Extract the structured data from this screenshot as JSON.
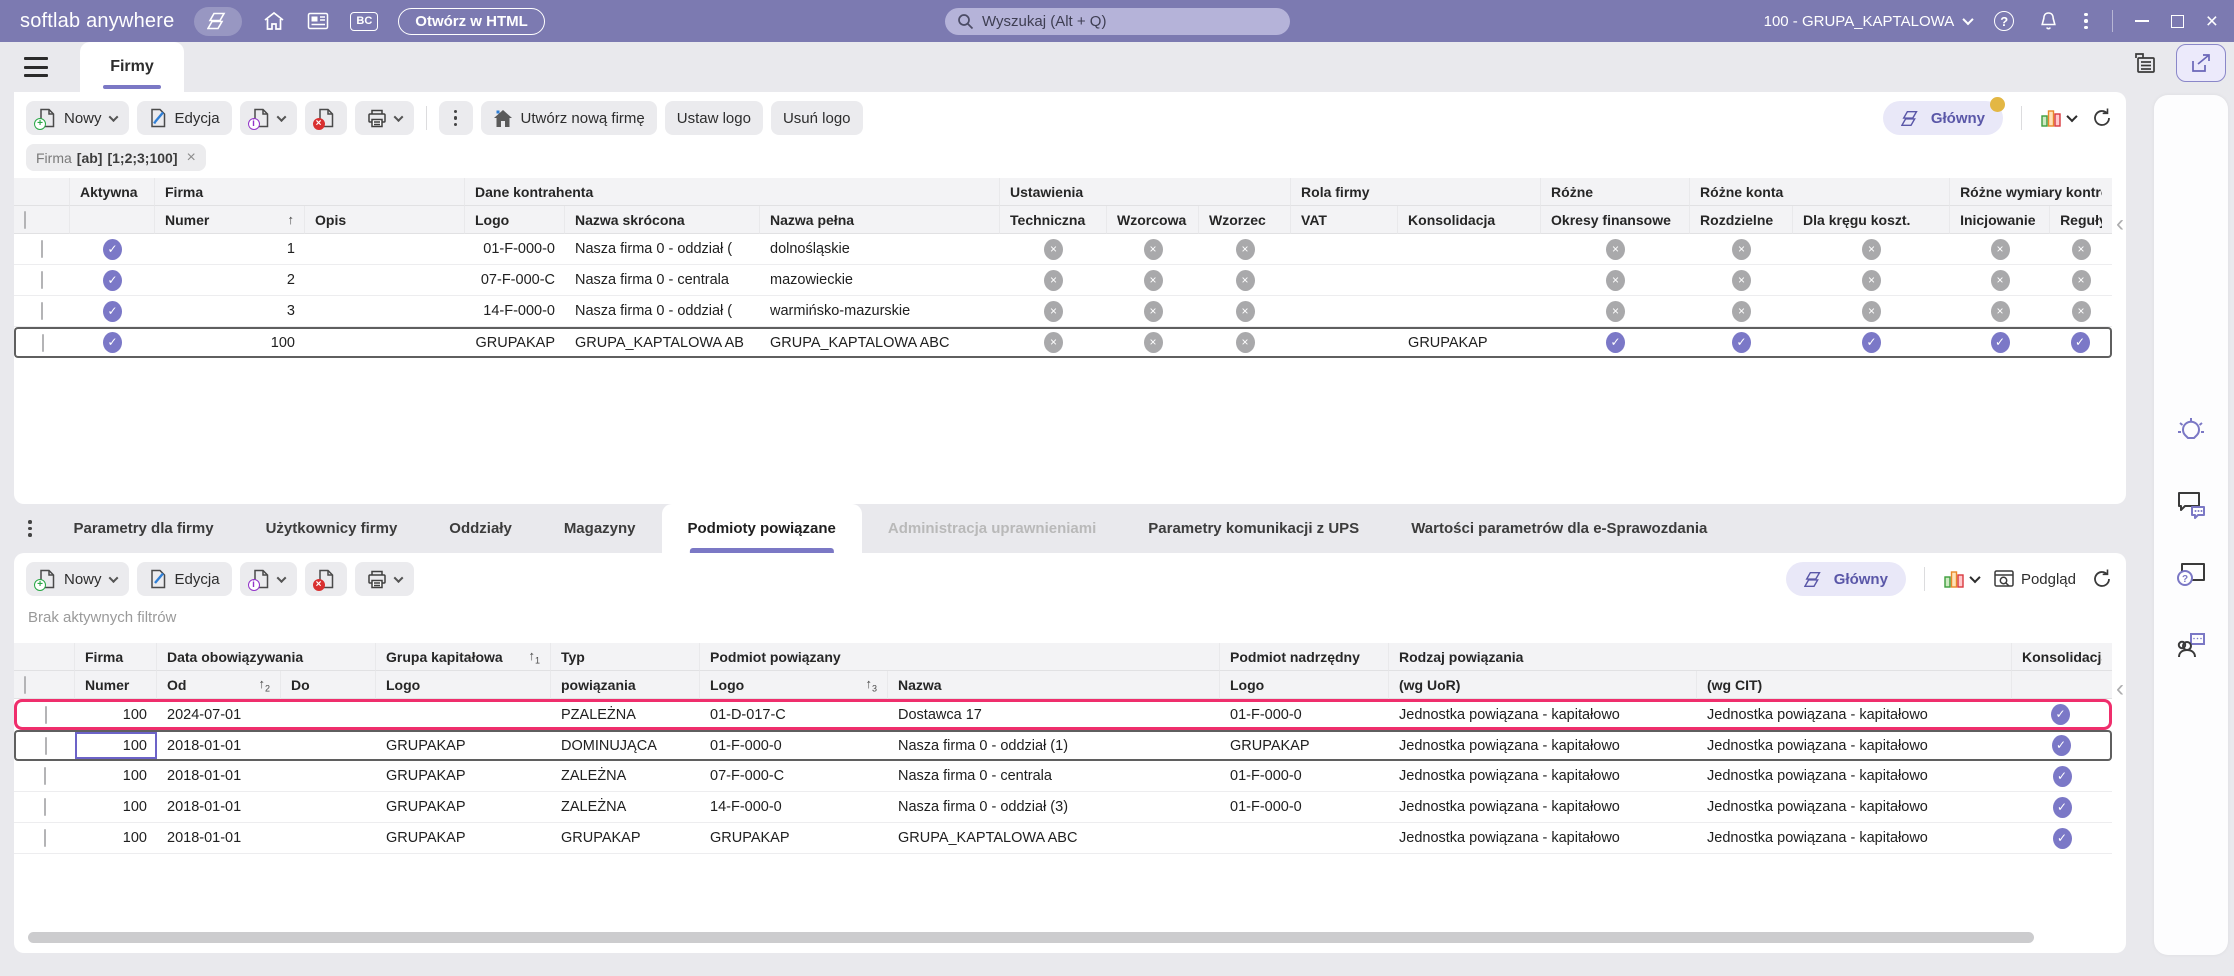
{
  "titlebar": {
    "app_name": "softlab anywhere",
    "open_in_html": "Otwórz w HTML",
    "search_placeholder": "Wyszukaj (Alt + Q)",
    "bc_label": "BC",
    "context": "100 - GRUPA_KAPTALOWA"
  },
  "main_tab": "Firmy",
  "toolbar": {
    "new": "Nowy",
    "edit": "Edycja",
    "create_company": "Utwórz nową firmę",
    "set_logo": "Ustaw logo",
    "remove_logo": "Usuń logo",
    "glowny": "Główny",
    "preview": "Podgląd"
  },
  "filter_chip": {
    "field": "Firma",
    "mode": "[ab]",
    "value": "[1;2;3;100]"
  },
  "no_active_filters": "Brak aktywnych filtrów",
  "detail_tabs": [
    {
      "label": "Parametry dla firmy"
    },
    {
      "label": "Użytkownicy firmy"
    },
    {
      "label": "Oddziały"
    },
    {
      "label": "Magazyny"
    },
    {
      "label": "Podmioty powiązane",
      "active": true
    },
    {
      "label": "Administracja uprawnieniami",
      "disabled": true
    },
    {
      "label": "Parametry komunikacji z UPS"
    },
    {
      "label": "Wartości parametrów dla e-Sprawozdania"
    }
  ],
  "companies_table": {
    "groups": [
      {
        "label": "",
        "span": 1
      },
      {
        "label": "Aktywna",
        "span": 1
      },
      {
        "label": "Firma",
        "span": 2
      },
      {
        "label": "Dane kontrahenta",
        "span": 3
      },
      {
        "label": "Ustawienia",
        "span": 3
      },
      {
        "label": "Rola firmy",
        "span": 2
      },
      {
        "label": "Różne",
        "span": 1
      },
      {
        "label": "Różne konta",
        "span": 2
      },
      {
        "label": "Różne wymiary kontrolin",
        "span": 2
      }
    ],
    "columns": [
      {
        "type": "sel"
      },
      {
        "label": ""
      },
      {
        "label": "Numer",
        "sort": ""
      },
      {
        "label": "Opis"
      },
      {
        "label": "Logo"
      },
      {
        "label": "Nazwa skrócona"
      },
      {
        "label": "Nazwa pełna"
      },
      {
        "label": "Techniczna"
      },
      {
        "label": "Wzorcowa"
      },
      {
        "label": "Wzorzec"
      },
      {
        "label": "VAT"
      },
      {
        "label": "Konsolidacja"
      },
      {
        "label": "Okresy finansowe"
      },
      {
        "label": "Rozdzielne"
      },
      {
        "label": "Dla kręgu koszt."
      },
      {
        "label": "Inicjowanie"
      },
      {
        "label": "Reguły"
      }
    ],
    "rows": [
      {
        "cells": [
          {
            "ic": "chk"
          },
          {
            "ic": "on"
          },
          {
            "v": "1",
            "bg": "y",
            "al": "r"
          },
          {
            "v": ""
          },
          {
            "v": "01-F-000-0",
            "al": "r"
          },
          {
            "v": "Nasza firma 0 - oddział ("
          },
          {
            "v": "dolnośląskie"
          },
          {
            "ic": "off"
          },
          {
            "ic": "off"
          },
          {
            "ic": "off"
          },
          {
            "v": ""
          },
          {
            "v": ""
          },
          {
            "ic": "off"
          },
          {
            "ic": "off"
          },
          {
            "ic": "off"
          },
          {
            "ic": "off"
          },
          {
            "ic": "off"
          }
        ]
      },
      {
        "cells": [
          {
            "ic": "chk"
          },
          {
            "ic": "on"
          },
          {
            "v": "2",
            "bg": "y",
            "al": "r"
          },
          {
            "v": ""
          },
          {
            "v": "07-F-000-C",
            "al": "r"
          },
          {
            "v": "Nasza firma 0 - centrala"
          },
          {
            "v": "mazowieckie"
          },
          {
            "ic": "off"
          },
          {
            "ic": "off"
          },
          {
            "ic": "off"
          },
          {
            "v": ""
          },
          {
            "v": ""
          },
          {
            "ic": "off"
          },
          {
            "ic": "off"
          },
          {
            "ic": "off"
          },
          {
            "ic": "off"
          },
          {
            "ic": "off"
          }
        ]
      },
      {
        "cells": [
          {
            "ic": "chk"
          },
          {
            "ic": "on"
          },
          {
            "v": "3",
            "bg": "y",
            "al": "r"
          },
          {
            "v": ""
          },
          {
            "v": "14-F-000-0",
            "al": "r"
          },
          {
            "v": "Nasza firma 0 - oddział ("
          },
          {
            "v": "warmińsko-mazurskie"
          },
          {
            "ic": "off"
          },
          {
            "ic": "off"
          },
          {
            "ic": "off"
          },
          {
            "v": ""
          },
          {
            "v": ""
          },
          {
            "ic": "off"
          },
          {
            "ic": "off"
          },
          {
            "ic": "off"
          },
          {
            "ic": "off"
          },
          {
            "ic": "off"
          }
        ]
      },
      {
        "state": "selected",
        "cells": [
          {
            "ic": "chk"
          },
          {
            "ic": "on"
          },
          {
            "v": "100",
            "bg": "y",
            "al": "r"
          },
          {
            "v": ""
          },
          {
            "v": "GRUPAKAP",
            "al": "r"
          },
          {
            "v": "GRUPA_KAPTALOWA AB"
          },
          {
            "v": "GRUPA_KAPTALOWA ABC"
          },
          {
            "ic": "off"
          },
          {
            "ic": "off"
          },
          {
            "ic": "off"
          },
          {
            "v": ""
          },
          {
            "v": "GRUPAKAP"
          },
          {
            "ic": "on"
          },
          {
            "ic": "on"
          },
          {
            "ic": "on"
          },
          {
            "ic": "on"
          },
          {
            "ic": "on"
          }
        ]
      }
    ]
  },
  "related_table": {
    "groups": [
      {
        "label": "",
        "span": 1
      },
      {
        "label": "Firma",
        "span": 1
      },
      {
        "label": "Data obowiązywania",
        "span": 2
      },
      {
        "label": "Grupa kapitałowa",
        "span": 1,
        "sort": "1"
      },
      {
        "label": "Typ",
        "span": 1
      },
      {
        "label": "Podmiot powiązany",
        "span": 2
      },
      {
        "label": "Podmiot nadrzędny",
        "span": 1
      },
      {
        "label": "Rodzaj powiązania",
        "span": 2
      },
      {
        "label": "Konsolidacja",
        "span": 1
      }
    ],
    "columns": [
      {
        "type": "sel"
      },
      {
        "label": "Numer"
      },
      {
        "label": "Od",
        "sort": "2"
      },
      {
        "label": "Do"
      },
      {
        "label": "Logo"
      },
      {
        "label": "powiązania"
      },
      {
        "label": "Logo",
        "sort": "3"
      },
      {
        "label": "Nazwa"
      },
      {
        "label": "Logo"
      },
      {
        "label": "(wg UoR)"
      },
      {
        "label": "(wg CIT)"
      },
      {
        "label": ""
      }
    ],
    "rows": [
      {
        "state": "pinned",
        "cells": [
          {
            "ic": "chk"
          },
          {
            "v": "100",
            "al": "r"
          },
          {
            "v": "2024-07-01"
          },
          {
            "v": ""
          },
          {
            "v": ""
          },
          {
            "v": "PZALEŻNA"
          },
          {
            "v": "01-D-017-C"
          },
          {
            "v": "Dostawca 17"
          },
          {
            "v": "01-F-000-0"
          },
          {
            "v": "Jednostka powiązana - kapitałowo"
          },
          {
            "v": "Jednostka powiązana - kapitałowo"
          },
          {
            "ic": "on"
          }
        ]
      },
      {
        "state": "selected",
        "cells": [
          {
            "ic": "chk"
          },
          {
            "v": "100",
            "al": "r",
            "focus": true
          },
          {
            "v": "2018-01-01"
          },
          {
            "v": ""
          },
          {
            "v": "GRUPAKAP"
          },
          {
            "v": "DOMINUJĄCA",
            "bg": "y2"
          },
          {
            "v": "01-F-000-0",
            "bg": "y2"
          },
          {
            "v": "Nasza firma 0 - oddział (1)"
          },
          {
            "v": "GRUPAKAP"
          },
          {
            "v": "Jednostka powiązana - kapitałowo"
          },
          {
            "v": "Jednostka powiązana - kapitałowo"
          },
          {
            "ic": "on"
          }
        ]
      },
      {
        "cells": [
          {
            "ic": "chk"
          },
          {
            "v": "100",
            "al": "r"
          },
          {
            "v": "2018-01-01"
          },
          {
            "v": ""
          },
          {
            "v": "GRUPAKAP"
          },
          {
            "v": "ZALEŻNA"
          },
          {
            "v": "07-F-000-C"
          },
          {
            "v": "Nasza firma 0 - centrala"
          },
          {
            "v": "01-F-000-0"
          },
          {
            "v": "Jednostka powiązana - kapitałowo"
          },
          {
            "v": "Jednostka powiązana - kapitałowo"
          },
          {
            "ic": "on"
          }
        ]
      },
      {
        "cells": [
          {
            "ic": "chk"
          },
          {
            "v": "100",
            "al": "r"
          },
          {
            "v": "2018-01-01"
          },
          {
            "v": ""
          },
          {
            "v": "GRUPAKAP"
          },
          {
            "v": "ZALEŻNA"
          },
          {
            "v": "14-F-000-0"
          },
          {
            "v": "Nasza firma 0 - oddział (3)"
          },
          {
            "v": "01-F-000-0"
          },
          {
            "v": "Jednostka powiązana - kapitałowo"
          },
          {
            "v": "Jednostka powiązana - kapitałowo"
          },
          {
            "ic": "on"
          }
        ]
      },
      {
        "cells": [
          {
            "ic": "chk"
          },
          {
            "v": "100",
            "al": "r"
          },
          {
            "v": "2018-01-01"
          },
          {
            "v": ""
          },
          {
            "v": "GRUPAKAP"
          },
          {
            "v": "GRUPAKAP",
            "bg": "g"
          },
          {
            "v": "GRUPAKAP",
            "bg": "g"
          },
          {
            "v": "GRUPA_KAPTALOWA ABC"
          },
          {
            "v": ""
          },
          {
            "v": "Jednostka powiązana - kapitałowo"
          },
          {
            "v": "Jednostka powiązana - kapitałowo"
          },
          {
            "ic": "on"
          }
        ]
      }
    ]
  },
  "colors": {
    "titlebar": "#7c7ab1",
    "accent": "#7b78c5",
    "selected_border": "#5f5f5f",
    "pinned_border": "#ef2e6c",
    "cell_yellow": "#fbf9dc",
    "cell_yellow_strong": "#f7f3c3",
    "cell_green": "#a5d077",
    "badge_dot": "#e3b744"
  }
}
